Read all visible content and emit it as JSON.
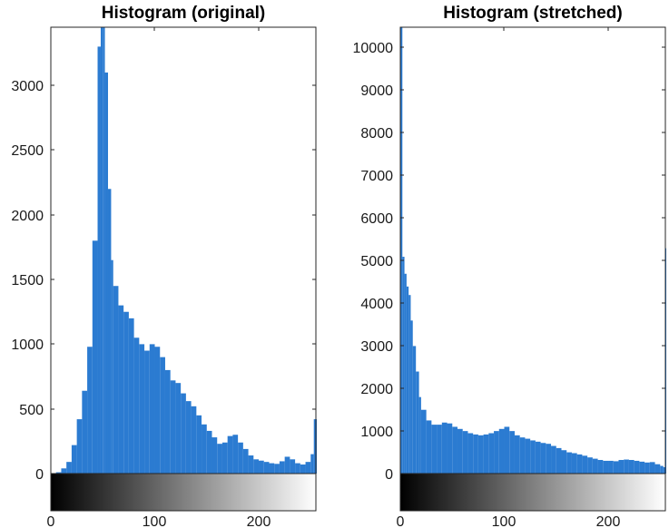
{
  "chart_data": [
    {
      "type": "bar",
      "title": "Histogram (original)",
      "xlim": [
        0,
        255
      ],
      "ylim": [
        0,
        3450
      ],
      "x_ticks": [
        "0",
        "100",
        "200"
      ],
      "y_ticks": [
        "0",
        "500",
        "1000",
        "1500",
        "2000",
        "2500",
        "3000"
      ],
      "bar_color": "#2b7bd1",
      "colorbar": "gray",
      "x": [
        5,
        10,
        15,
        20,
        25,
        30,
        35,
        40,
        45,
        48,
        50,
        52,
        55,
        58,
        60,
        65,
        70,
        75,
        80,
        85,
        90,
        95,
        100,
        105,
        110,
        115,
        120,
        125,
        130,
        135,
        140,
        145,
        150,
        155,
        160,
        165,
        170,
        175,
        180,
        185,
        190,
        195,
        200,
        205,
        210,
        215,
        220,
        225,
        230,
        235,
        240,
        245,
        250,
        253,
        255
      ],
      "values": [
        10,
        40,
        90,
        220,
        420,
        640,
        980,
        1800,
        3300,
        3450,
        3450,
        3100,
        2200,
        1650,
        1450,
        1300,
        1250,
        1200,
        1050,
        1000,
        950,
        1000,
        980,
        900,
        800,
        720,
        700,
        620,
        560,
        520,
        450,
        380,
        330,
        280,
        230,
        240,
        290,
        300,
        240,
        190,
        140,
        110,
        100,
        90,
        80,
        75,
        95,
        130,
        110,
        80,
        70,
        90,
        150,
        420,
        420
      ],
      "series": [
        {
          "values": [
            10,
            40,
            90,
            220,
            420,
            640,
            980,
            1800,
            3300,
            3450,
            3450,
            3100,
            2200,
            1650,
            1450,
            1300,
            1250,
            1200,
            1050,
            1000,
            950,
            1000,
            980,
            900,
            800,
            720,
            700,
            620,
            560,
            520,
            450,
            380,
            330,
            280,
            230,
            240,
            290,
            300,
            240,
            190,
            140,
            110,
            100,
            90,
            80,
            75,
            95,
            130,
            110,
            80,
            70,
            90,
            150,
            420,
            420
          ]
        }
      ],
      "grid": false
    },
    {
      "type": "bar",
      "title": "Histogram (stretched)",
      "xlim": [
        0,
        255
      ],
      "ylim": [
        0,
        10500
      ],
      "x_ticks": [
        "0",
        "100",
        "200"
      ],
      "y_ticks": [
        "0",
        "1000",
        "2000",
        "3000",
        "4000",
        "5000",
        "6000",
        "7000",
        "8000",
        "9000",
        "10000"
      ],
      "bar_color": "#2b7bd1",
      "colorbar": "gray",
      "x": [
        0,
        2,
        4,
        6,
        8,
        10,
        12,
        15,
        18,
        20,
        25,
        30,
        35,
        40,
        45,
        50,
        55,
        60,
        65,
        70,
        75,
        80,
        85,
        90,
        95,
        100,
        105,
        110,
        115,
        120,
        125,
        130,
        135,
        140,
        145,
        150,
        155,
        160,
        165,
        170,
        175,
        180,
        185,
        190,
        195,
        200,
        205,
        210,
        215,
        220,
        225,
        230,
        235,
        240,
        245,
        250,
        253,
        255
      ],
      "values": [
        10500,
        5100,
        4700,
        4400,
        4200,
        3600,
        3000,
        2400,
        1800,
        1500,
        1250,
        1150,
        1150,
        1200,
        1180,
        1100,
        1050,
        1000,
        950,
        920,
        900,
        920,
        950,
        1000,
        1050,
        1100,
        1000,
        900,
        850,
        820,
        780,
        750,
        720,
        700,
        650,
        600,
        550,
        500,
        480,
        450,
        420,
        380,
        350,
        320,
        300,
        300,
        290,
        320,
        330,
        320,
        300,
        280,
        260,
        270,
        220,
        180,
        150,
        5300
      ],
      "series": [
        {
          "values": [
            10500,
            5100,
            4700,
            4400,
            4200,
            3600,
            3000,
            2400,
            1800,
            1500,
            1250,
            1150,
            1150,
            1200,
            1180,
            1100,
            1050,
            1000,
            950,
            920,
            900,
            920,
            950,
            1000,
            1050,
            1100,
            1000,
            900,
            850,
            820,
            780,
            750,
            720,
            700,
            650,
            600,
            550,
            500,
            480,
            450,
            420,
            380,
            350,
            320,
            300,
            300,
            290,
            320,
            330,
            320,
            300,
            280,
            260,
            270,
            220,
            180,
            150,
            5300
          ]
        }
      ],
      "grid": false
    }
  ]
}
